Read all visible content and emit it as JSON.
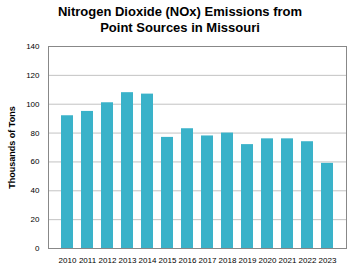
{
  "chart_data": {
    "type": "bar",
    "title": "Nitrogen Dioxide (NOx) Emissions from\nPoint Sources in Missouri",
    "y_label": "Thousands of Tons",
    "categories": [
      "2010",
      "2011",
      "2012",
      "2013",
      "2014",
      "2015",
      "2016",
      "2017",
      "2018",
      "2019",
      "2020",
      "2021",
      "2022",
      "2023"
    ],
    "values": [
      92,
      95,
      101,
      108,
      107,
      77,
      83,
      78,
      80,
      72,
      76,
      76,
      74,
      59
    ],
    "color": "#3ab2c9",
    "ylim": [
      0,
      140
    ],
    "yticks": [
      0,
      20,
      40,
      60,
      80,
      100,
      120,
      140
    ],
    "grid": true
  }
}
